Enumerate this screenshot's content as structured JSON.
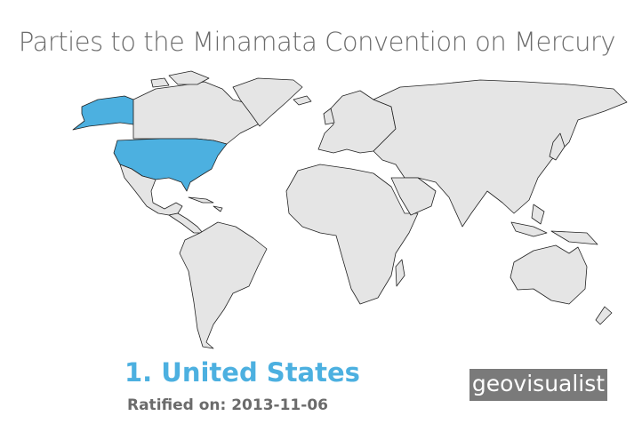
{
  "title": "Parties to the Minamata Convention on Mercury",
  "selected": {
    "rank_name": "1. United States",
    "ratified_label": "Ratified on: 2013-11-06"
  },
  "logo": "geovisualist",
  "colors": {
    "party": "#4cb0e0",
    "non_party": "#e5e5e5",
    "border": "#222222",
    "title": "#6b6b6b"
  },
  "parties": [
    "United States"
  ]
}
